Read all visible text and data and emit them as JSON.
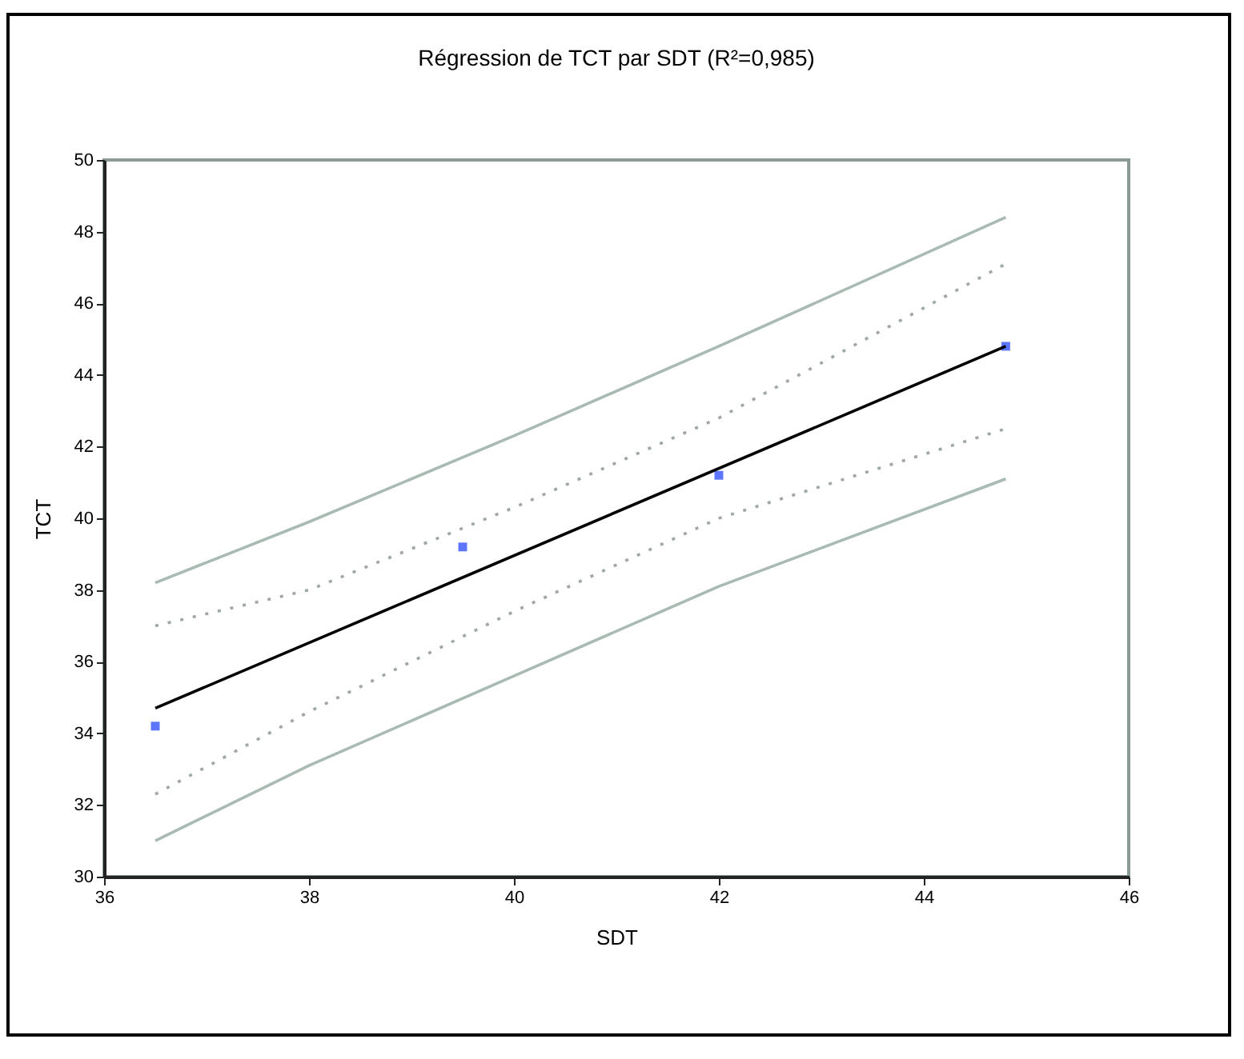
{
  "chart_data": {
    "type": "scatter",
    "title": "Régression de TCT par SDT (R²=0,985)",
    "xlabel": "SDT",
    "ylabel": "TCT",
    "xlim": [
      36,
      46
    ],
    "xticks": [
      36,
      38,
      40,
      42,
      44,
      46
    ],
    "ylim": [
      30,
      50
    ],
    "yticks": [
      30,
      32,
      34,
      36,
      38,
      40,
      42,
      44,
      46,
      48,
      50
    ],
    "grid": false,
    "series": [
      {
        "marker": "square",
        "color": "#1a3cff",
        "x": [
          36.5,
          39.5,
          42,
          44.8
        ],
        "values": [
          34.2,
          39.2,
          41.2,
          44.8
        ]
      },
      {
        "type": "line",
        "color": "#000000",
        "line_style": "solid",
        "x": [
          36.5,
          44.8
        ],
        "values": [
          34.7,
          44.8
        ]
      },
      {
        "type": "line",
        "color": "#a9bab2",
        "line_style": "solid",
        "x": [
          36.5,
          38,
          40,
          42,
          44.8
        ],
        "values": [
          38.2,
          39.9,
          42.3,
          44.8,
          48.4
        ]
      },
      {
        "type": "line",
        "color": "#a9bab2",
        "line_style": "solid",
        "x": [
          36.5,
          38,
          40,
          42,
          44.8
        ],
        "values": [
          31.0,
          33.1,
          35.6,
          38.1,
          41.1
        ]
      },
      {
        "type": "line",
        "color": "#a0a8a4",
        "line_style": "dotted",
        "x": [
          36.5,
          38,
          40,
          42,
          44.8
        ],
        "values": [
          37.0,
          38.0,
          40.3,
          42.8,
          47.1
        ]
      },
      {
        "type": "line",
        "color": "#a0a8a4",
        "line_style": "dotted",
        "x": [
          36.5,
          38,
          40,
          42,
          44.8
        ],
        "values": [
          32.3,
          34.6,
          37.4,
          40.0,
          42.5
        ]
      }
    ]
  }
}
